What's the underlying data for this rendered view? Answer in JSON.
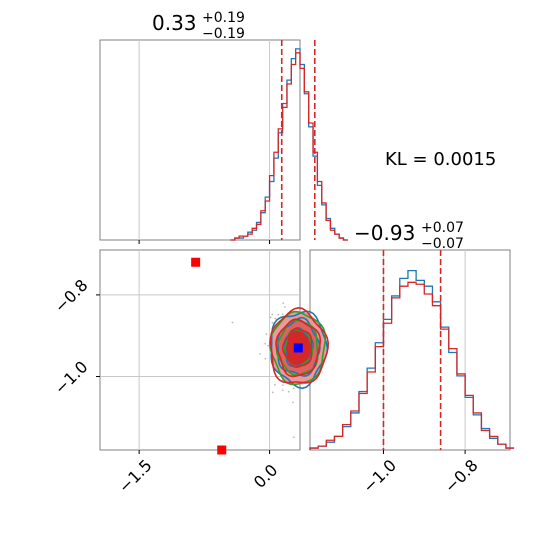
{
  "figure": {
    "annotation": "KL = 0.0015",
    "colors": {
      "series_a": "#1f77b4",
      "series_b": "#d62728",
      "contour_secondary": "#2ca02c",
      "marker_truth": "#0000ff",
      "marker_other": "#ff0000",
      "grid": "#c8c8c8",
      "frame": "#808080"
    }
  },
  "chart_data": [
    {
      "type": "line",
      "panel": "marginal-x",
      "title": {
        "base": "0.33",
        "sup": "+0.19",
        "sub": "−0.19"
      },
      "xlim": [
        -1.95,
        0.35
      ],
      "ylim": [
        0,
        1.0
      ],
      "x_ticks": [
        -1.5,
        0.0
      ],
      "grid": true,
      "quantile_lines": [
        0.14,
        0.52
      ],
      "series": [
        {
          "style": "step",
          "bins": [
            [
              -0.45,
              0.0
            ],
            [
              -0.4,
              0.01
            ],
            [
              -0.35,
              0.01
            ],
            [
              -0.3,
              0.02
            ],
            [
              -0.25,
              0.04
            ],
            [
              -0.2,
              0.05
            ],
            [
              -0.15,
              0.09
            ],
            [
              -0.1,
              0.14
            ],
            [
              -0.05,
              0.22
            ],
            [
              0.0,
              0.3
            ],
            [
              0.05,
              0.42
            ],
            [
              0.1,
              0.55
            ],
            [
              0.15,
              0.7
            ],
            [
              0.2,
              0.82
            ],
            [
              0.25,
              0.93
            ],
            [
              0.3,
              0.98
            ],
            [
              0.35,
              0.9
            ],
            [
              0.4,
              0.75
            ],
            [
              0.45,
              0.58
            ],
            [
              0.5,
              0.43
            ],
            [
              0.55,
              0.28
            ],
            [
              0.6,
              0.18
            ],
            [
              0.65,
              0.11
            ],
            [
              0.7,
              0.06
            ],
            [
              0.75,
              0.03
            ],
            [
              0.8,
              0.01
            ],
            [
              0.85,
              0.0
            ]
          ]
        },
        {
          "style": "step",
          "bins": [
            [
              -0.45,
              0.0
            ],
            [
              -0.4,
              0.01
            ],
            [
              -0.35,
              0.02
            ],
            [
              -0.3,
              0.02
            ],
            [
              -0.25,
              0.03
            ],
            [
              -0.2,
              0.06
            ],
            [
              -0.15,
              0.08
            ],
            [
              -0.1,
              0.15
            ],
            [
              -0.05,
              0.2
            ],
            [
              0.0,
              0.33
            ],
            [
              0.05,
              0.45
            ],
            [
              0.1,
              0.57
            ],
            [
              0.15,
              0.68
            ],
            [
              0.2,
              0.8
            ],
            [
              0.25,
              0.9
            ],
            [
              0.3,
              0.96
            ],
            [
              0.35,
              0.88
            ],
            [
              0.4,
              0.76
            ],
            [
              0.45,
              0.6
            ],
            [
              0.5,
              0.45
            ],
            [
              0.55,
              0.3
            ],
            [
              0.6,
              0.19
            ],
            [
              0.65,
              0.1
            ],
            [
              0.7,
              0.05
            ],
            [
              0.75,
              0.03
            ],
            [
              0.8,
              0.01
            ],
            [
              0.85,
              0.0
            ]
          ]
        }
      ]
    },
    {
      "type": "line",
      "panel": "marginal-y",
      "title": {
        "base": "−0.93",
        "sup": "+0.07",
        "sub": "−0.07"
      },
      "xlim": [
        -1.18,
        -0.69
      ],
      "ylim": [
        0,
        1.0
      ],
      "x_ticks": [
        -1.0,
        -0.8
      ],
      "grid": true,
      "quantile_lines": [
        -1.0,
        -0.86
      ],
      "series": [
        {
          "style": "step",
          "bins": [
            [
              -1.18,
              0.01
            ],
            [
              -1.16,
              0.02
            ],
            [
              -1.14,
              0.04
            ],
            [
              -1.12,
              0.07
            ],
            [
              -1.1,
              0.12
            ],
            [
              -1.08,
              0.19
            ],
            [
              -1.06,
              0.3
            ],
            [
              -1.04,
              0.42
            ],
            [
              -1.02,
              0.55
            ],
            [
              -1.0,
              0.67
            ],
            [
              -0.98,
              0.79
            ],
            [
              -0.96,
              0.88
            ],
            [
              -0.94,
              0.92
            ],
            [
              -0.92,
              0.87
            ],
            [
              -0.9,
              0.84
            ],
            [
              -0.88,
              0.76
            ],
            [
              -0.86,
              0.63
            ],
            [
              -0.84,
              0.5
            ],
            [
              -0.82,
              0.38
            ],
            [
              -0.8,
              0.27
            ],
            [
              -0.78,
              0.18
            ],
            [
              -0.76,
              0.11
            ],
            [
              -0.74,
              0.06
            ],
            [
              -0.72,
              0.03
            ],
            [
              -0.7,
              0.01
            ]
          ]
        },
        {
          "style": "step",
          "bins": [
            [
              -1.18,
              0.01
            ],
            [
              -1.16,
              0.02
            ],
            [
              -1.14,
              0.05
            ],
            [
              -1.12,
              0.07
            ],
            [
              -1.1,
              0.13
            ],
            [
              -1.08,
              0.2
            ],
            [
              -1.06,
              0.29
            ],
            [
              -1.04,
              0.4
            ],
            [
              -1.02,
              0.53
            ],
            [
              -1.0,
              0.65
            ],
            [
              -0.98,
              0.78
            ],
            [
              -0.96,
              0.84
            ],
            [
              -0.94,
              0.86
            ],
            [
              -0.92,
              0.85
            ],
            [
              -0.9,
              0.8
            ],
            [
              -0.88,
              0.74
            ],
            [
              -0.86,
              0.62
            ],
            [
              -0.84,
              0.52
            ],
            [
              -0.82,
              0.39
            ],
            [
              -0.8,
              0.28
            ],
            [
              -0.78,
              0.19
            ],
            [
              -0.76,
              0.1
            ],
            [
              -0.74,
              0.07
            ],
            [
              -0.72,
              0.03
            ],
            [
              -0.7,
              0.01
            ]
          ]
        }
      ]
    },
    {
      "type": "scatter",
      "panel": "joint",
      "xlim": [
        -1.95,
        0.35
      ],
      "ylim": [
        -1.18,
        -0.69
      ],
      "x_ticks": [
        -1.5,
        0.0
      ],
      "y_ticks": [
        -1.0,
        -0.8
      ],
      "grid": true,
      "contour_center": [
        0.33,
        -0.93
      ],
      "contour_levels": [
        {
          "sx": 0.32,
          "sy": 0.09,
          "fill": "#ee9999"
        },
        {
          "sx": 0.24,
          "sy": 0.068,
          "fill": "#e26060"
        },
        {
          "sx": 0.16,
          "sy": 0.046,
          "fill": "#d62728"
        }
      ],
      "points": [
        {
          "role": "truth",
          "x": 0.33,
          "y": -0.93,
          "shape": "square"
        },
        {
          "role": "other",
          "x": -0.85,
          "y": -0.72,
          "shape": "square"
        },
        {
          "role": "other",
          "x": -0.55,
          "y": -1.18,
          "shape": "square"
        }
      ]
    }
  ]
}
